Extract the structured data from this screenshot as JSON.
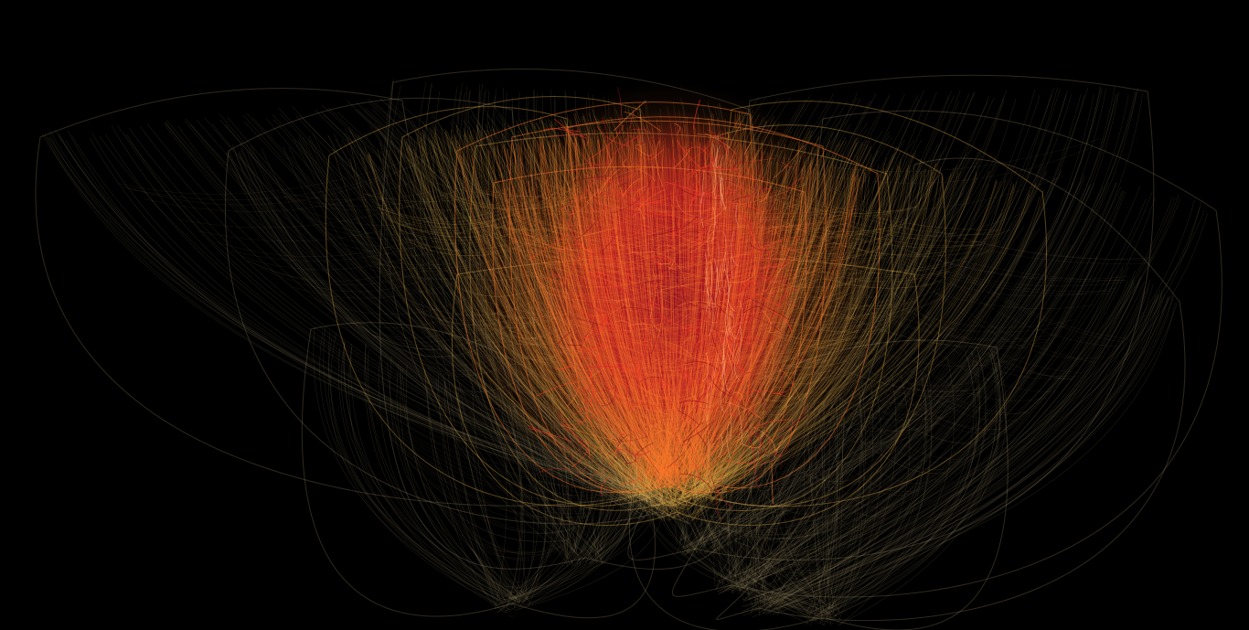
{
  "canvas": {
    "background": "#000000"
  },
  "artwork": {
    "kind": "generative wireframe lotus",
    "palette": {
      "outer": "#b8a574",
      "mid": "#e8b04a",
      "warm": "#ff7a2a",
      "hot": "#ff3b24",
      "core": "#8a0c22"
    }
  }
}
